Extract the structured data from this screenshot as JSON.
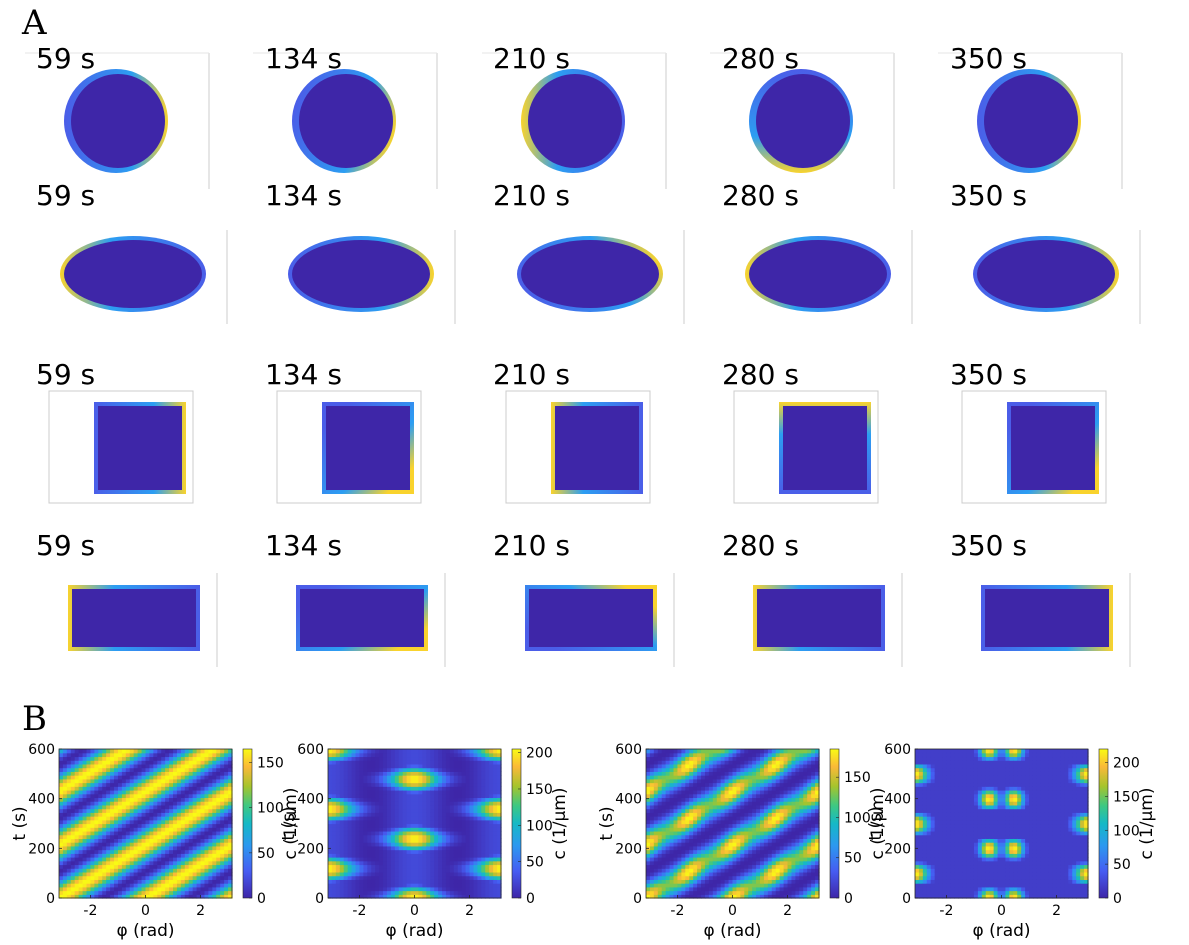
{
  "panels": {
    "a_label": "A",
    "b_label": "B"
  },
  "panel_a": {
    "time_labels": [
      "59 s",
      "134 s",
      "210 s",
      "280 s",
      "350 s"
    ],
    "shapes": [
      "circle",
      "ellipse",
      "square",
      "rectangle"
    ]
  },
  "colors": {
    "interior": "#3e26a8",
    "edge_mid": "#2c9ef2",
    "edge_hot": "#f9d32d",
    "frame": "#cccccc"
  },
  "chart_data": [
    {
      "type": "heatmap",
      "xlabel": "φ (rad)",
      "ylabel": "t (s)",
      "colorbar_label": "c (1/μm)",
      "xlim": [
        -3.14,
        3.14
      ],
      "ylim": [
        0,
        600
      ],
      "x_ticks": [
        "-2",
        "0",
        "2"
      ],
      "y_ticks": [
        "0",
        "200",
        "400",
        "600"
      ],
      "colorbar_ticks": [
        "0",
        "50",
        "100",
        "150"
      ],
      "clim": [
        0,
        165
      ]
    },
    {
      "type": "heatmap",
      "xlabel": "φ (rad)",
      "ylabel": "t (s)",
      "colorbar_label": "c (1/μm)",
      "xlim": [
        -3.14,
        3.14
      ],
      "ylim": [
        0,
        600
      ],
      "x_ticks": [
        "-2",
        "0",
        "2"
      ],
      "y_ticks": [
        "0",
        "200",
        "400",
        "600"
      ],
      "colorbar_ticks": [
        "0",
        "50",
        "100",
        "150",
        "200"
      ],
      "clim": [
        0,
        205
      ]
    },
    {
      "type": "heatmap",
      "xlabel": "φ (rad)",
      "ylabel": "t (s)",
      "colorbar_label": "c (1/μm)",
      "xlim": [
        -3.14,
        3.14
      ],
      "ylim": [
        0,
        600
      ],
      "x_ticks": [
        "-2",
        "0",
        "2"
      ],
      "y_ticks": [
        "0",
        "200",
        "400",
        "600"
      ],
      "colorbar_ticks": [
        "0",
        "50",
        "100",
        "150"
      ],
      "clim": [
        0,
        185
      ]
    },
    {
      "type": "heatmap",
      "xlabel": "φ (rad)",
      "ylabel": "t (s)",
      "colorbar_label": "c (1/μm)",
      "xlim": [
        -3.14,
        3.14
      ],
      "ylim": [
        0,
        600
      ],
      "x_ticks": [
        "-2",
        "0",
        "2"
      ],
      "y_ticks": [
        "0",
        "200",
        "400",
        "600"
      ],
      "colorbar_ticks": [
        "0",
        "50",
        "100",
        "150",
        "200"
      ],
      "clim": [
        0,
        220
      ]
    }
  ]
}
